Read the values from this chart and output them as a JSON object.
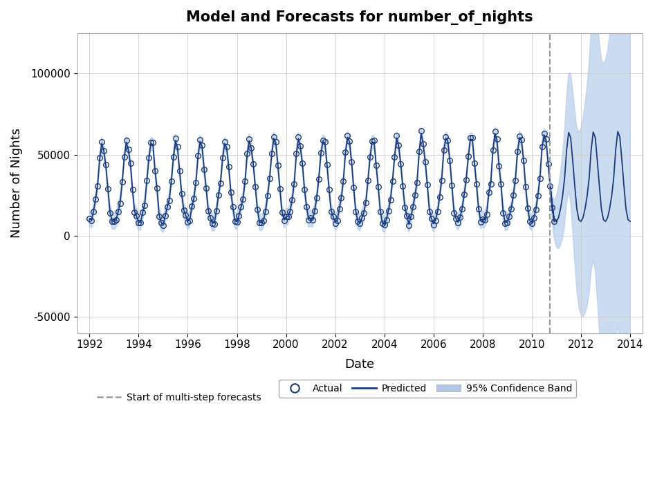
{
  "title": "Model and Forecasts for number_of_nights",
  "xlabel": "Date",
  "ylabel": "Number of Nights",
  "background_color": "#ffffff",
  "grid_color": "#cccccc",
  "forecast_start_year": 2010.75,
  "xlim": [
    1991.5,
    2014.5
  ],
  "ylim": [
    -60000,
    125000
  ],
  "yticks": [
    -50000,
    0,
    50000,
    100000
  ],
  "ytick_labels": [
    "-50000",
    "0",
    "50000",
    "100000"
  ],
  "xticks": [
    1992,
    1994,
    1996,
    1998,
    2000,
    2002,
    2004,
    2006,
    2008,
    2010,
    2012,
    2014
  ],
  "line_color": "#1a3a7c",
  "ci_color": "#b0c8e8",
  "actual_marker_color": "#1a3a7c",
  "dashed_color": "#999999",
  "title_fontsize": 15,
  "axis_label_fontsize": 13,
  "tick_fontsize": 11,
  "legend_fontsize": 10
}
